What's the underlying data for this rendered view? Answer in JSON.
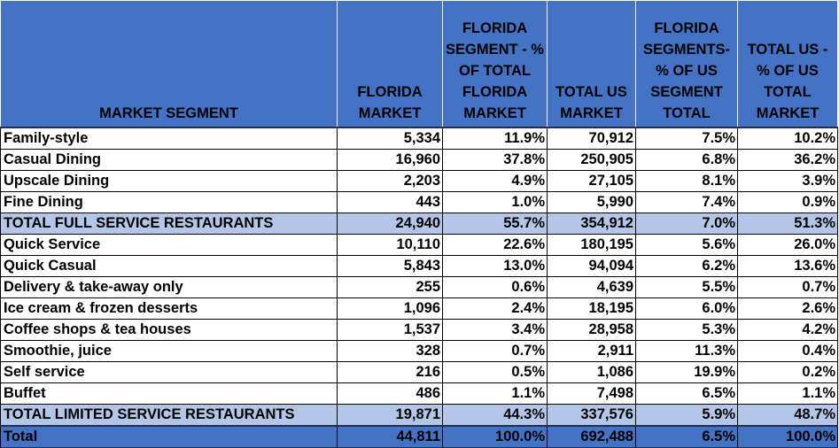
{
  "headers": [
    "MARKET SEGMENT",
    "FLORIDA MARKET",
    "FLORIDA SEGMENT - % OF TOTAL FLORIDA MARKET",
    "TOTAL US MARKET",
    "FLORIDA SEGMENTS- % OF US SEGMENT TOTAL",
    "TOTAL US - % OF US TOTAL MARKET"
  ],
  "rows": [
    {
      "type": "row",
      "cells": [
        "Family-style",
        "5,334",
        "11.9%",
        "70,912",
        "7.5%",
        "10.2%"
      ]
    },
    {
      "type": "row",
      "cells": [
        "Casual Dining",
        "16,960",
        "37.8%",
        "250,905",
        "6.8%",
        "36.2%"
      ]
    },
    {
      "type": "row",
      "cells": [
        "Upscale Dining",
        "2,203",
        "4.9%",
        "27,105",
        "8.1%",
        "3.9%"
      ]
    },
    {
      "type": "row",
      "cells": [
        "Fine Dining",
        "443",
        "1.0%",
        "5,990",
        "7.4%",
        "0.9%"
      ]
    },
    {
      "type": "subtotal",
      "cells": [
        "TOTAL FULL SERVICE RESTAURANTS",
        "24,940",
        "55.7%",
        "354,912",
        "7.0%",
        "51.3%"
      ]
    },
    {
      "type": "row",
      "cells": [
        "Quick Service",
        "10,110",
        "22.6%",
        "180,195",
        "5.6%",
        "26.0%"
      ]
    },
    {
      "type": "row",
      "cells": [
        "Quick Casual",
        "5,843",
        "13.0%",
        "94,094",
        "6.2%",
        "13.6%"
      ]
    },
    {
      "type": "row",
      "cells": [
        "Delivery & take-away only",
        "255",
        "0.6%",
        "4,639",
        "5.5%",
        "0.7%"
      ]
    },
    {
      "type": "row",
      "cells": [
        "Ice cream & frozen desserts",
        "1,096",
        "2.4%",
        "18,195",
        "6.0%",
        "2.6%"
      ]
    },
    {
      "type": "row",
      "cells": [
        "Coffee shops & tea houses",
        "1,537",
        "3.4%",
        "28,958",
        "5.3%",
        "4.2%"
      ]
    },
    {
      "type": "row",
      "cells": [
        "Smoothie, juice",
        "328",
        "0.7%",
        "2,911",
        "11.3%",
        "0.4%"
      ]
    },
    {
      "type": "row",
      "cells": [
        "Self service",
        "216",
        "0.5%",
        "1,086",
        "19.9%",
        "0.2%"
      ]
    },
    {
      "type": "row",
      "cells": [
        "Buffet",
        "486",
        "1.1%",
        "7,498",
        "6.5%",
        "1.1%"
      ]
    },
    {
      "type": "subtotal",
      "cells": [
        "TOTAL LIMITED SERVICE RESTAURANTS",
        "19,871",
        "44.3%",
        "337,576",
        "5.9%",
        "48.7%"
      ]
    },
    {
      "type": "grandtotal",
      "cells": [
        "Total",
        "44,811",
        "100.0%",
        "692,488",
        "6.5%",
        "100.0%"
      ]
    }
  ],
  "colors": {
    "header_bg": "#4472c4",
    "subtotal_bg": "#b4c6e7",
    "total_bg": "#4472c4"
  }
}
